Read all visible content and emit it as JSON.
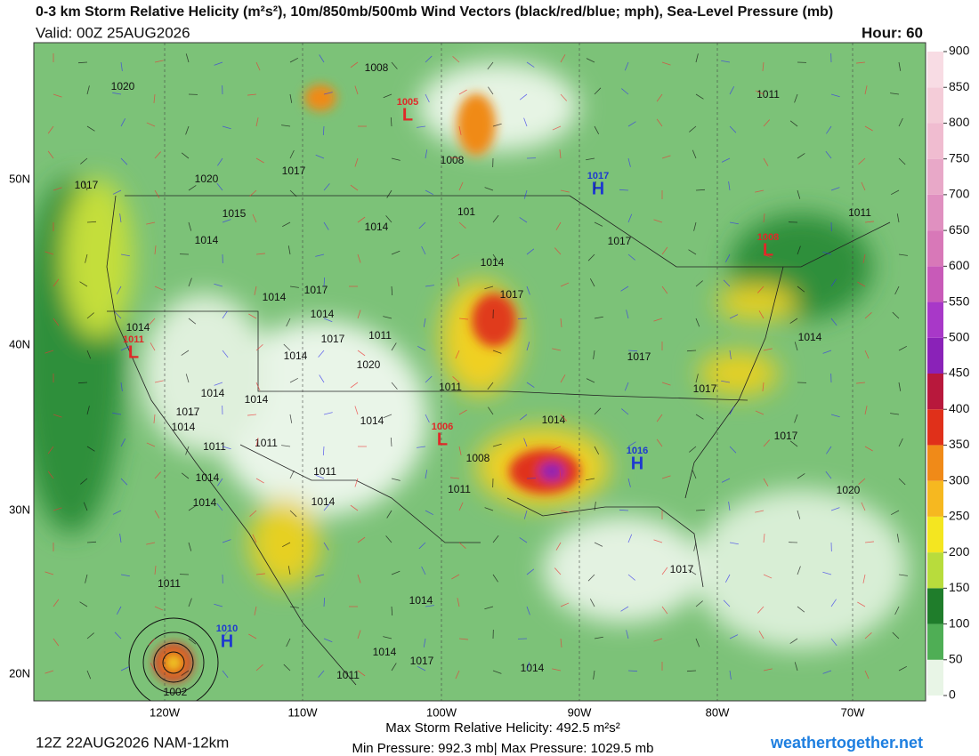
{
  "header": {
    "title": "0-3 km Storm Relative Helicity (m²s²), 10m/850mb/500mb Wind Vectors (black/red/blue; mph), Sea-Level Pressure (mb)",
    "valid": "Valid: 00Z 25AUG2026",
    "hour": "Hour: 60"
  },
  "colorbar": {
    "ticks": [
      0,
      50,
      100,
      150,
      200,
      250,
      300,
      350,
      400,
      450,
      500,
      550,
      600,
      650,
      700,
      750,
      800,
      850,
      900
    ],
    "colors": [
      "#e8f5e6",
      "#4fae55",
      "#1f7d2b",
      "#b8dc3c",
      "#f4e620",
      "#f6b820",
      "#f08a18",
      "#e0301a",
      "#b8183c",
      "#8a22b8",
      "#a838c8",
      "#c85ab8",
      "#d878b8",
      "#e090c0",
      "#e8a8c8",
      "#f0bcd0",
      "#f4ccd8",
      "#f8dce4"
    ]
  },
  "map": {
    "lat_labels": [
      "50N",
      "40N",
      "30N",
      "20N"
    ],
    "lon_labels": [
      "120W",
      "110W",
      "100W",
      "90W",
      "80W",
      "70W"
    ],
    "centers": [
      {
        "type": "L",
        "pressure": "1005"
      },
      {
        "type": "H",
        "pressure": "1017"
      },
      {
        "type": "L",
        "pressure": "1008"
      },
      {
        "type": "L",
        "pressure": "1011"
      },
      {
        "type": "L",
        "pressure": "1006"
      },
      {
        "type": "H",
        "pressure": "1016"
      },
      {
        "type": "H",
        "pressure": "1010"
      }
    ],
    "isobar_labels": [
      "1020",
      "1008",
      "1017",
      "1020",
      "1015",
      "1014",
      "1014",
      "1017",
      "1014",
      "1017",
      "1014",
      "1017",
      "1014",
      "1014",
      "1017",
      "1011",
      "1014",
      "1020",
      "1011",
      "1017",
      "1017",
      "1014",
      "1014",
      "1017",
      "1014",
      "1014",
      "1014",
      "1011",
      "1011",
      "1008",
      "1011",
      "1017",
      "1014",
      "1011",
      "1014",
      "1014",
      "1020",
      "1017",
      "1011",
      "1014",
      "1014",
      "1017",
      "1014",
      "1011",
      "1002",
      "1011",
      "1011",
      "1014",
      "101",
      "1008",
      "1017"
    ]
  },
  "footer": {
    "run": "12Z 22AUG2026 NAM-12km",
    "max_helicity": "Max Storm Relative Helicity: 492.5 m²s²",
    "pressure_range": "Min Pressure: 992.3 mb| Max Pressure: 1029.5 mb",
    "site": "weathertogether.net"
  }
}
